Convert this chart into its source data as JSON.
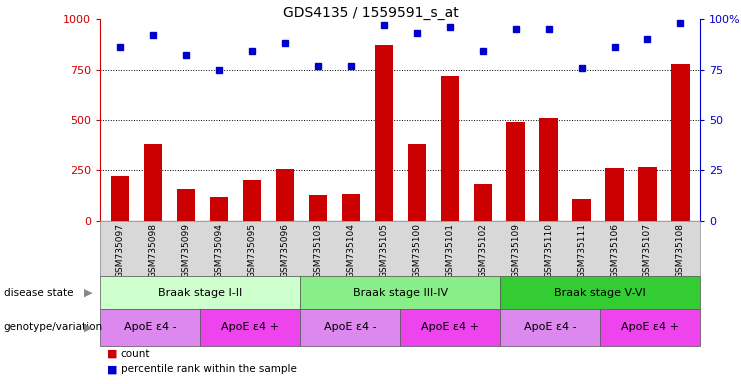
{
  "title": "GDS4135 / 1559591_s_at",
  "samples": [
    "GSM735097",
    "GSM735098",
    "GSM735099",
    "GSM735094",
    "GSM735095",
    "GSM735096",
    "GSM735103",
    "GSM735104",
    "GSM735105",
    "GSM735100",
    "GSM735101",
    "GSM735102",
    "GSM735109",
    "GSM735110",
    "GSM735111",
    "GSM735106",
    "GSM735107",
    "GSM735108"
  ],
  "counts": [
    220,
    380,
    160,
    120,
    200,
    255,
    130,
    135,
    870,
    380,
    720,
    185,
    490,
    510,
    110,
    260,
    265,
    780
  ],
  "percentiles": [
    86,
    92,
    82,
    75,
    84,
    88,
    77,
    77,
    97,
    93,
    96,
    84,
    95,
    95,
    76,
    86,
    90,
    98
  ],
  "ylim_left": [
    0,
    1000
  ],
  "ylim_right": [
    0,
    100
  ],
  "yticks_left": [
    0,
    250,
    500,
    750,
    1000
  ],
  "yticks_right": [
    0,
    25,
    50,
    75,
    100
  ],
  "ytick_labels_right": [
    "0",
    "25",
    "50",
    "75",
    "100%"
  ],
  "bar_color": "#cc0000",
  "dot_color": "#0000cc",
  "disease_state_label": "disease state",
  "genotype_label": "genotype/variation",
  "disease_groups": [
    {
      "label": "Braak stage I-II",
      "start": 0,
      "end": 6,
      "color": "#ccffcc"
    },
    {
      "label": "Braak stage III-IV",
      "start": 6,
      "end": 12,
      "color": "#88ee88"
    },
    {
      "label": "Braak stage V-VI",
      "start": 12,
      "end": 18,
      "color": "#33cc33"
    }
  ],
  "genotype_groups": [
    {
      "label": "ApoE ε4 -",
      "start": 0,
      "end": 3,
      "color": "#dd88ee"
    },
    {
      "label": "ApoE ε4 +",
      "start": 3,
      "end": 6,
      "color": "#ee44ee"
    },
    {
      "label": "ApoE ε4 -",
      "start": 6,
      "end": 9,
      "color": "#dd88ee"
    },
    {
      "label": "ApoE ε4 +",
      "start": 9,
      "end": 12,
      "color": "#ee44ee"
    },
    {
      "label": "ApoE ε4 -",
      "start": 12,
      "end": 15,
      "color": "#dd88ee"
    },
    {
      "label": "ApoE ε4 +",
      "start": 15,
      "end": 18,
      "color": "#ee44ee"
    }
  ],
  "legend_count_color": "#cc0000",
  "legend_dot_color": "#0000cc",
  "xtick_bg": "#d8d8d8"
}
